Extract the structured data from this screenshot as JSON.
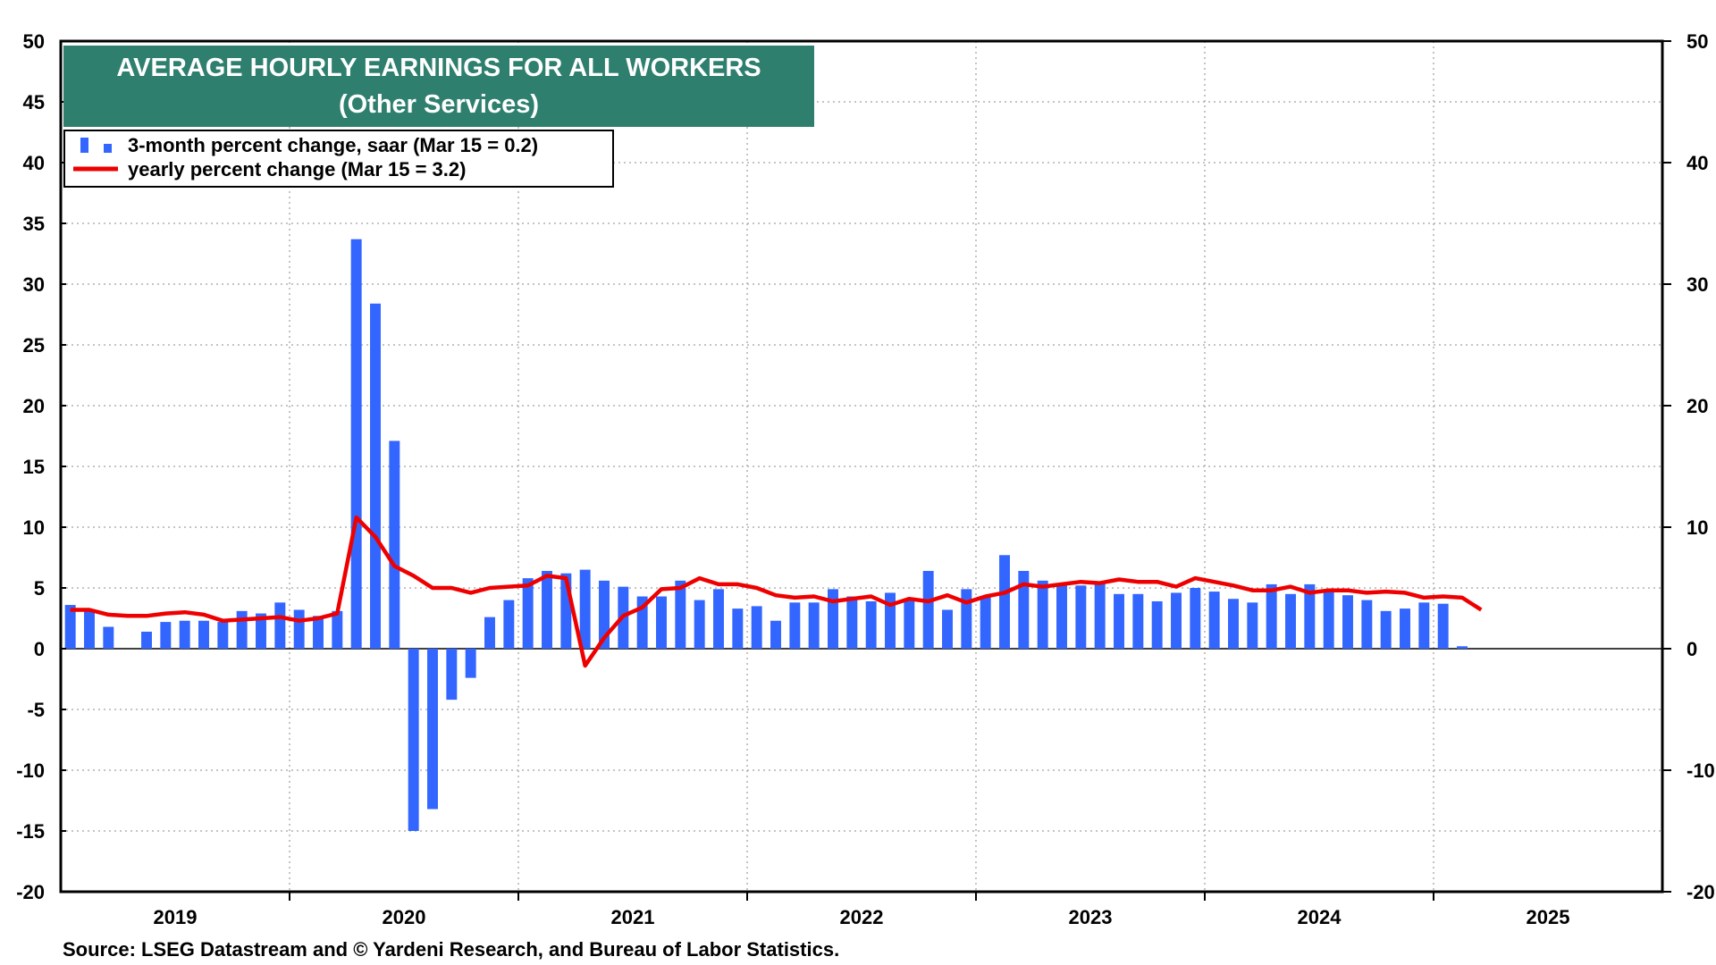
{
  "chart_data": {
    "type": "bar",
    "title": "AVERAGE HOURLY EARNINGS FOR ALL WORKERS",
    "subtitle": "(Other Services)",
    "source": "Source: LSEG Datastream and © Yardeni Research, and Bureau of Labor Statistics.",
    "ylim": [
      -20,
      50
    ],
    "y_ticks": [
      50,
      45,
      40,
      35,
      30,
      25,
      20,
      15,
      10,
      5,
      0,
      -5,
      -10,
      -15,
      -20
    ],
    "y_ticks_right": [
      50,
      40,
      30,
      20,
      10,
      0,
      -10,
      -20
    ],
    "x_labels": [
      "2019",
      "2020",
      "2021",
      "2022",
      "2023",
      "2024",
      "2025"
    ],
    "grid": true,
    "legend_position": "top-left",
    "months": [
      "2019-01",
      "2019-02",
      "2019-03",
      "2019-04",
      "2019-05",
      "2019-06",
      "2019-07",
      "2019-08",
      "2019-09",
      "2019-10",
      "2019-11",
      "2019-12",
      "2020-01",
      "2020-02",
      "2020-03",
      "2020-04",
      "2020-05",
      "2020-06",
      "2020-07",
      "2020-08",
      "2020-09",
      "2020-10",
      "2020-11",
      "2020-12",
      "2021-01",
      "2021-02",
      "2021-03",
      "2021-04",
      "2021-05",
      "2021-06",
      "2021-07",
      "2021-08",
      "2021-09",
      "2021-10",
      "2021-11",
      "2021-12",
      "2022-01",
      "2022-02",
      "2022-03",
      "2022-04",
      "2022-05",
      "2022-06",
      "2022-07",
      "2022-08",
      "2022-09",
      "2022-10",
      "2022-11",
      "2022-12",
      "2023-01",
      "2023-02",
      "2023-03",
      "2023-04",
      "2023-05",
      "2023-06",
      "2023-07",
      "2023-08",
      "2023-09",
      "2023-10",
      "2023-11",
      "2023-12",
      "2024-01",
      "2024-02",
      "2024-03",
      "2024-04",
      "2024-05",
      "2024-06",
      "2024-07",
      "2024-08",
      "2024-09",
      "2024-10",
      "2024-11",
      "2024-12",
      "2025-01",
      "2025-02",
      "2025-03"
    ],
    "series": [
      {
        "name": "3-month percent change, saar (Mar 15 = 0.2)",
        "type": "bar",
        "color": "#3366ff",
        "values": [
          3.6,
          3.2,
          1.8,
          null,
          1.4,
          2.2,
          2.3,
          2.3,
          2.2,
          3.1,
          2.9,
          3.8,
          3.2,
          2.7,
          3.1,
          33.7,
          28.4,
          17.1,
          -15.0,
          -13.2,
          -4.2,
          -2.4,
          2.6,
          4.0,
          5.8,
          6.4,
          6.2,
          6.5,
          5.6,
          5.1,
          4.3,
          4.3,
          5.6,
          4.0,
          4.9,
          3.3,
          3.5,
          2.3,
          3.8,
          3.8,
          4.9,
          4.3,
          3.9,
          4.6,
          4.1,
          6.4,
          3.2,
          4.9,
          4.3,
          7.7,
          6.4,
          5.6,
          5.2,
          5.2,
          5.4,
          4.5,
          4.5,
          3.9,
          4.6,
          5.0,
          4.7,
          4.1,
          3.8,
          5.3,
          4.5,
          5.3,
          4.7,
          4.4,
          4.0,
          3.1,
          3.3,
          3.8,
          3.7,
          0.2,
          null
        ]
      },
      {
        "name": "yearly percent change (Mar 15 = 3.2)",
        "type": "line",
        "color": "#ee0000",
        "values": [
          3.2,
          3.2,
          2.8,
          2.7,
          2.7,
          2.9,
          3.0,
          2.8,
          2.3,
          2.4,
          2.5,
          2.6,
          2.3,
          2.5,
          2.9,
          10.8,
          9.2,
          6.8,
          6.0,
          5.0,
          5.0,
          4.6,
          5.0,
          5.1,
          5.2,
          6.0,
          5.8,
          -1.4,
          0.9,
          2.7,
          3.4,
          4.9,
          5.0,
          5.8,
          5.3,
          5.3,
          5.0,
          4.4,
          4.2,
          4.3,
          3.9,
          4.1,
          4.3,
          3.6,
          4.1,
          3.9,
          4.4,
          3.8,
          4.3,
          4.6,
          5.3,
          5.1,
          5.3,
          5.5,
          5.4,
          5.7,
          5.5,
          5.5,
          5.1,
          5.8,
          5.5,
          5.2,
          4.8,
          4.8,
          5.1,
          4.6,
          4.8,
          4.8,
          4.6,
          4.7,
          4.6,
          4.2,
          4.3,
          4.2,
          3.2
        ]
      }
    ]
  }
}
